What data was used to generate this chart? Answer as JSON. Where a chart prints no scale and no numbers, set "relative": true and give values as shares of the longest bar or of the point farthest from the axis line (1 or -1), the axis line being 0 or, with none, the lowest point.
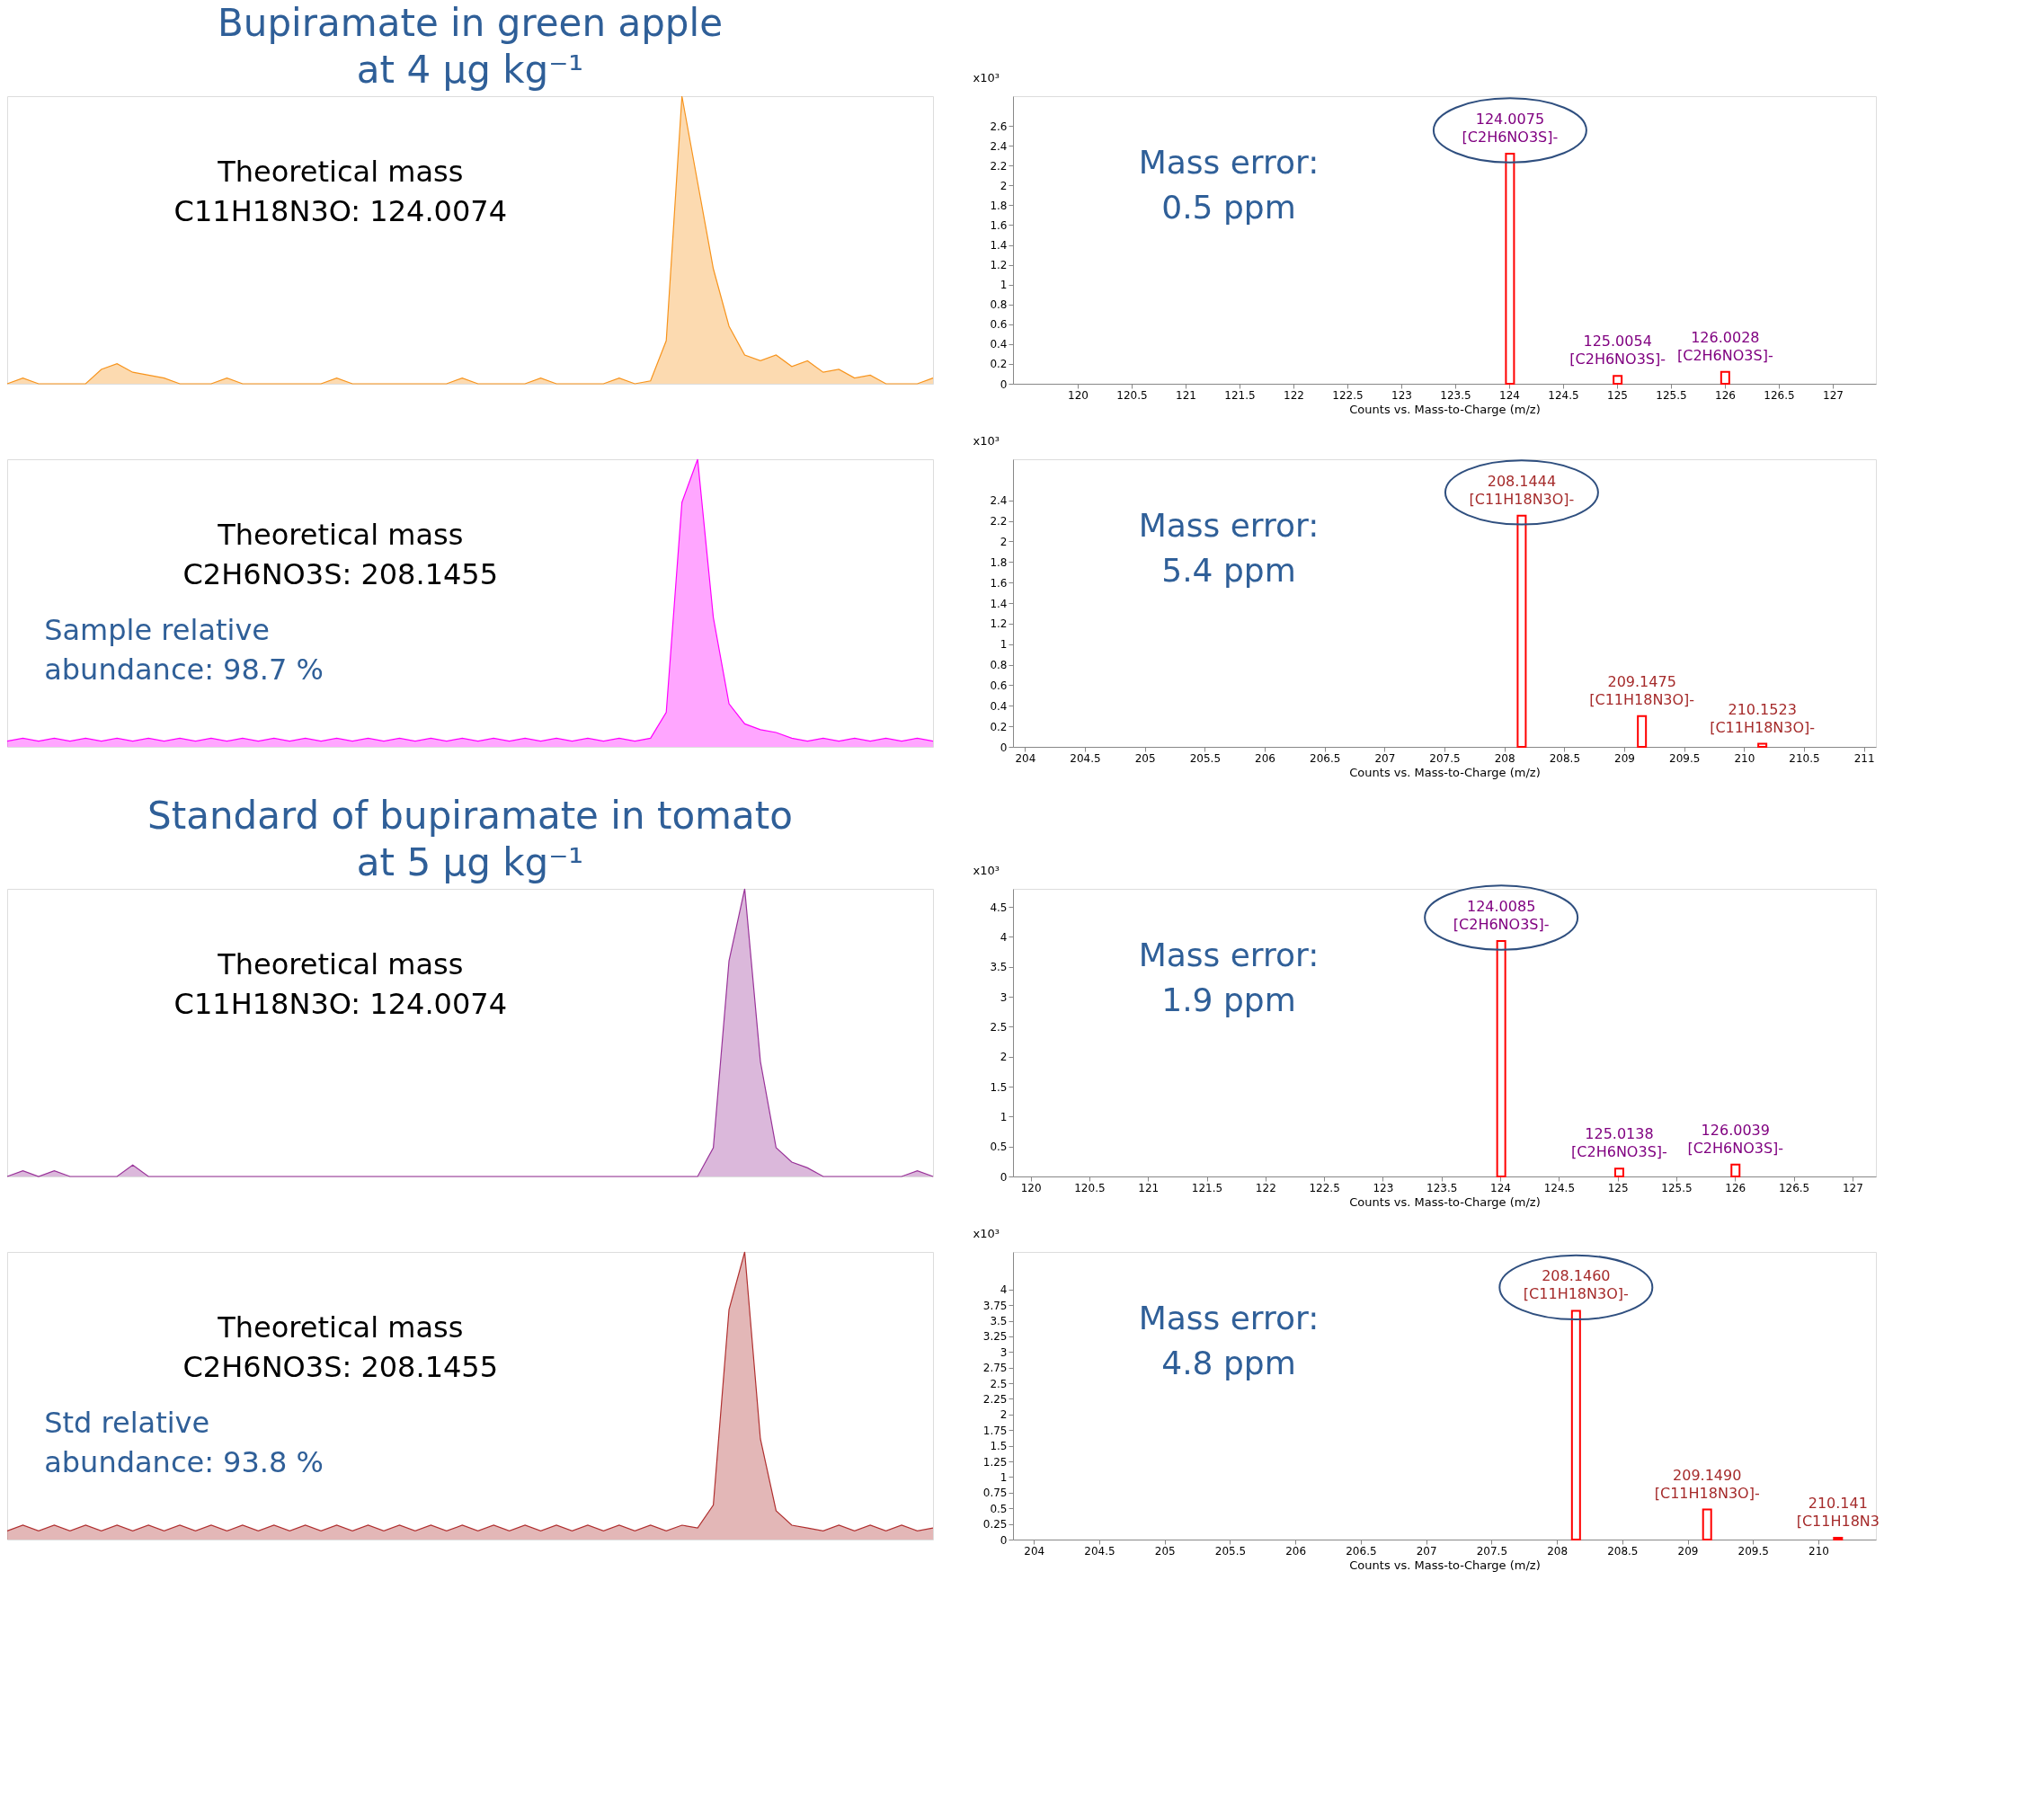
{
  "chart_data": [
    {
      "type": "area",
      "relative": true,
      "title": "Bupiramate in green apple\nat 4 μg kg⁻¹",
      "categories": [
        null,
        null,
        null,
        null,
        null,
        null,
        null,
        null,
        null,
        null,
        null,
        null,
        null,
        null,
        null,
        null,
        null,
        null,
        null,
        null,
        null,
        null,
        null,
        null,
        null,
        null,
        null,
        null,
        null,
        null,
        null,
        null,
        null,
        null,
        null,
        null,
        null,
        null,
        null,
        null,
        null,
        null,
        null,
        null,
        null,
        null,
        null,
        null,
        null,
        null,
        null,
        null,
        null,
        null,
        null,
        null,
        null,
        null,
        null,
        null
      ],
      "series": [
        {
          "color": "#f7941d",
          "values": [
            0,
            0.02,
            0,
            0,
            0,
            0,
            0.05,
            0.07,
            0.04,
            0.03,
            0.02,
            0,
            0,
            0,
            0.02,
            0,
            0,
            0,
            0,
            0,
            0,
            0.02,
            0,
            0,
            0,
            0,
            0,
            0,
            0,
            0.02,
            0,
            0,
            0,
            0,
            0.02,
            0,
            0,
            0,
            0,
            0.02,
            0,
            0.01,
            0.15,
            1,
            0.7,
            0.4,
            0.2,
            0.1,
            0.08,
            0.1,
            0.06,
            0.08,
            0.04,
            0.05,
            0.02,
            0.03,
            0,
            0,
            0,
            0.02
          ]
        }
      ],
      "annotations": [
        "Theoretical mass\nC11H18N3O: 124.0074"
      ]
    },
    {
      "type": "bar",
      "xlabel": "Counts vs. Mass-to-Charge (m/z)",
      "ylabel": "x10³",
      "xlim": [
        119.4,
        127.4
      ],
      "ylim": [
        0,
        2.9
      ],
      "xticks": [
        120,
        120.5,
        121,
        121.5,
        122,
        122.5,
        123,
        123.5,
        124,
        124.5,
        125,
        125.5,
        126,
        126.5,
        127
      ],
      "yticks": [
        0,
        0.2,
        0.4,
        0.6,
        0.8,
        1,
        1.2,
        1.4,
        1.6,
        1.8,
        2,
        2.2,
        2.4,
        2.6
      ],
      "series": [
        {
          "color": "#ff0000",
          "x": [
            124.0075,
            125.0054,
            126.0028
          ],
          "values": [
            2.32,
            0.08,
            0.12
          ]
        }
      ],
      "annotations": [
        "Mass error:\n0.5 ppm",
        {
          "text": "124.0075\n[C2H6NO3S]-",
          "x": 124.0075,
          "y": 2.32
        },
        {
          "text": "125.0054\n[C2H6NO3S]-",
          "x": 125.0054,
          "y": 0.08
        },
        {
          "text": "126.0028\n[C2H6NO3S]-",
          "x": 126.0028,
          "y": 0.12
        }
      ]
    },
    {
      "type": "area",
      "relative": true,
      "categories": [
        null,
        null,
        null,
        null,
        null,
        null,
        null,
        null,
        null,
        null,
        null,
        null,
        null,
        null,
        null,
        null,
        null,
        null,
        null,
        null,
        null,
        null,
        null,
        null,
        null,
        null,
        null,
        null,
        null,
        null,
        null,
        null,
        null,
        null,
        null,
        null,
        null,
        null,
        null,
        null,
        null,
        null,
        null,
        null,
        null,
        null,
        null,
        null,
        null,
        null,
        null,
        null,
        null,
        null,
        null,
        null,
        null,
        null,
        null,
        null
      ],
      "series": [
        {
          "color": "#ff00ff",
          "values": [
            0.02,
            0.03,
            0.02,
            0.03,
            0.02,
            0.03,
            0.02,
            0.03,
            0.02,
            0.03,
            0.02,
            0.03,
            0.02,
            0.03,
            0.02,
            0.03,
            0.02,
            0.03,
            0.02,
            0.03,
            0.02,
            0.03,
            0.02,
            0.03,
            0.02,
            0.03,
            0.02,
            0.03,
            0.02,
            0.03,
            0.02,
            0.03,
            0.02,
            0.03,
            0.02,
            0.03,
            0.02,
            0.03,
            0.02,
            0.03,
            0.02,
            0.03,
            0.12,
            0.85,
            1,
            0.45,
            0.15,
            0.08,
            0.06,
            0.05,
            0.03,
            0.02,
            0.03,
            0.02,
            0.03,
            0.02,
            0.03,
            0.02,
            0.03,
            0.02
          ]
        }
      ],
      "annotations": [
        "Theoretical mass\nC2H6NO3S: 208.1455",
        "Sample relative\nabundance: 98.7 %"
      ]
    },
    {
      "type": "bar",
      "xlabel": "Counts vs. Mass-to-Charge (m/z)",
      "ylabel": "x10³",
      "xlim": [
        203.9,
        211.1
      ],
      "ylim": [
        0,
        2.8
      ],
      "xticks": [
        204,
        204.5,
        205,
        205.5,
        206,
        206.5,
        207,
        207.5,
        208,
        208.5,
        209,
        209.5,
        210,
        210.5,
        211
      ],
      "yticks": [
        0,
        0.2,
        0.4,
        0.6,
        0.8,
        1,
        1.2,
        1.4,
        1.6,
        1.8,
        2,
        2.2,
        2.4
      ],
      "series": [
        {
          "color": "#ff0000",
          "x": [
            208.1444,
            209.1475,
            210.1523
          ],
          "values": [
            2.25,
            0.3,
            0.03
          ]
        }
      ],
      "annotations": [
        "Mass error:\n5.4 ppm",
        {
          "text": "208.1444\n[C11H18N3O]-",
          "x": 208.1444,
          "y": 2.25
        },
        {
          "text": "209.1475\n[C11H18N3O]-",
          "x": 209.1475,
          "y": 0.3
        },
        {
          "text": "210.1523\n[C11H18N3O]-",
          "x": 210.1523,
          "y": 0.03
        }
      ]
    },
    {
      "type": "area",
      "relative": true,
      "title": "Standard of bupiramate in tomato\nat 5 μg kg⁻¹",
      "categories": [
        null,
        null,
        null,
        null,
        null,
        null,
        null,
        null,
        null,
        null,
        null,
        null,
        null,
        null,
        null,
        null,
        null,
        null,
        null,
        null,
        null,
        null,
        null,
        null,
        null,
        null,
        null,
        null,
        null,
        null,
        null,
        null,
        null,
        null,
        null,
        null,
        null,
        null,
        null,
        null,
        null,
        null,
        null,
        null,
        null,
        null,
        null,
        null,
        null,
        null,
        null,
        null,
        null,
        null,
        null,
        null,
        null,
        null,
        null,
        null
      ],
      "series": [
        {
          "color": "#993399",
          "values": [
            0,
            0.02,
            0,
            0.02,
            0,
            0,
            0,
            0,
            0.04,
            0,
            0,
            0,
            0,
            0,
            0,
            0,
            0,
            0,
            0,
            0,
            0,
            0,
            0,
            0,
            0,
            0,
            0,
            0,
            0,
            0,
            0,
            0,
            0,
            0,
            0,
            0,
            0,
            0,
            0,
            0,
            0,
            0,
            0,
            0,
            0,
            0.1,
            0.75,
            1,
            0.4,
            0.1,
            0.05,
            0.03,
            0,
            0,
            0,
            0,
            0,
            0,
            0.02,
            0
          ]
        }
      ],
      "annotations": [
        "Theoretical mass\nC11H18N3O: 124.0074"
      ]
    },
    {
      "type": "bar",
      "xlabel": "Counts vs. Mass-to-Charge (m/z)",
      "ylabel": "x10³",
      "xlim": [
        119.85,
        127.2
      ],
      "ylim": [
        0,
        4.8
      ],
      "xticks": [
        120,
        120.5,
        121,
        121.5,
        122,
        122.5,
        123,
        123.5,
        124,
        124.5,
        125,
        125.5,
        126,
        126.5,
        127
      ],
      "yticks": [
        0,
        0.5,
        1,
        1.5,
        2,
        2.5,
        3,
        3.5,
        4,
        4.5
      ],
      "series": [
        {
          "color": "#ff0000",
          "x": [
            124.0085,
            125.0138,
            126.0039
          ],
          "values": [
            3.93,
            0.13,
            0.2
          ]
        }
      ],
      "annotations": [
        "Mass error:\n1.9 ppm",
        {
          "text": "124.0085\n[C2H6NO3S]-",
          "x": 124.0085,
          "y": 3.93
        },
        {
          "text": "125.0138\n[C2H6NO3S]-",
          "x": 125.0138,
          "y": 0.13
        },
        {
          "text": "126.0039\n[C2H6NO3S]-",
          "x": 126.0039,
          "y": 0.2
        }
      ]
    },
    {
      "type": "area",
      "relative": true,
      "categories": [
        null,
        null,
        null,
        null,
        null,
        null,
        null,
        null,
        null,
        null,
        null,
        null,
        null,
        null,
        null,
        null,
        null,
        null,
        null,
        null,
        null,
        null,
        null,
        null,
        null,
        null,
        null,
        null,
        null,
        null,
        null,
        null,
        null,
        null,
        null,
        null,
        null,
        null,
        null,
        null,
        null,
        null,
        null,
        null,
        null,
        null,
        null,
        null,
        null,
        null,
        null,
        null,
        null,
        null,
        null,
        null,
        null,
        null,
        null,
        null
      ],
      "series": [
        {
          "color": "#b03030",
          "values": [
            0.03,
            0.05,
            0.03,
            0.05,
            0.03,
            0.05,
            0.03,
            0.05,
            0.03,
            0.05,
            0.03,
            0.05,
            0.03,
            0.05,
            0.03,
            0.05,
            0.03,
            0.05,
            0.03,
            0.05,
            0.03,
            0.05,
            0.03,
            0.05,
            0.03,
            0.05,
            0.03,
            0.05,
            0.03,
            0.05,
            0.03,
            0.05,
            0.03,
            0.05,
            0.03,
            0.05,
            0.03,
            0.05,
            0.03,
            0.05,
            0.03,
            0.05,
            0.03,
            0.05,
            0.04,
            0.12,
            0.8,
            1,
            0.35,
            0.1,
            0.05,
            0.04,
            0.03,
            0.05,
            0.03,
            0.05,
            0.03,
            0.05,
            0.03,
            0.04
          ]
        }
      ],
      "annotations": [
        "Theoretical mass\nC2H6NO3S: 208.1455",
        "Std relative\nabundance: 93.8 %"
      ]
    },
    {
      "type": "bar",
      "xlabel": "Counts vs. Mass-to-Charge (m/z)",
      "ylabel": "x10³",
      "xlim": [
        203.84,
        210.44
      ],
      "ylim": [
        0,
        4.6
      ],
      "xticks": [
        204,
        204.5,
        205,
        205.5,
        206,
        206.5,
        207,
        207.5,
        208,
        208.5,
        209,
        209.5,
        210
      ],
      "yticks": [
        0,
        0.25,
        0.5,
        0.75,
        1,
        1.25,
        1.5,
        1.75,
        2,
        2.25,
        2.5,
        2.75,
        3,
        3.25,
        3.5,
        3.75,
        4
      ],
      "series": [
        {
          "color": "#ff0000",
          "x": [
            208.146,
            209.149,
            210.15
          ],
          "values": [
            3.66,
            0.48,
            0.03
          ]
        }
      ],
      "annotations": [
        "Mass error:\n4.8 ppm",
        {
          "text": "208.1460\n[C11H18N3O]-",
          "x": 208.146,
          "y": 3.66
        },
        {
          "text": "209.1490\n[C11H18N3O]-",
          "x": 209.149,
          "y": 0.48
        },
        {
          "text": "210.141\n[C11H18N3",
          "x": 210.15,
          "y": 0.03
        }
      ]
    }
  ]
}
